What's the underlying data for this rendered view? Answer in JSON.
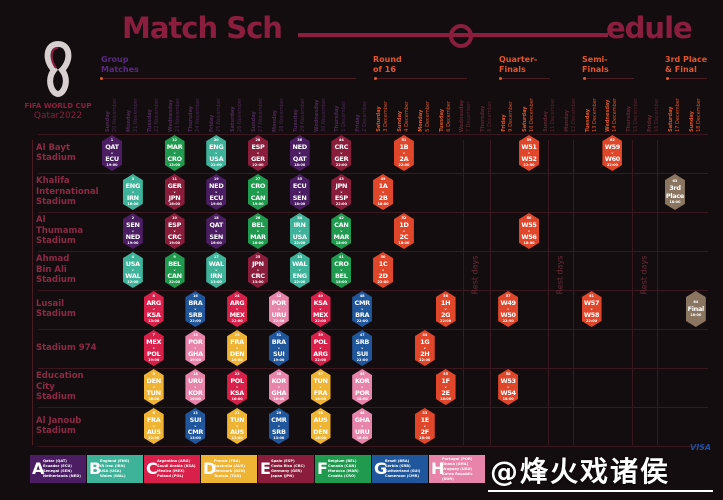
{
  "header": {
    "title_left": "Match Sch",
    "title_right": "edule",
    "logo_line1": "FIFA WORLD CUP",
    "logo_line2": "Qatar2022",
    "phases": {
      "group": "Group\nMatches",
      "r16": "Round\nof 16",
      "qf": "Quarter-\nFinals",
      "sf": "Semi-\nFinals",
      "final": "3rd Place\n& Final"
    }
  },
  "rest_label": "Rest days",
  "colors": {
    "title": "#8b1e3f",
    "knockout": "#e0462a",
    "final": "#8a7660",
    "ko_day": "#e0562a",
    "group_day": "#4a2a55",
    "rest_day": "#5a2530"
  },
  "days": [
    {
      "wd": "Sunday",
      "date": "20 November",
      "kind": "group"
    },
    {
      "wd": "Monday",
      "date": "21 November",
      "kind": "group"
    },
    {
      "wd": "Tuesday",
      "date": "22 November",
      "kind": "group"
    },
    {
      "wd": "Wednesday",
      "date": "23 November",
      "kind": "group"
    },
    {
      "wd": "Thursday",
      "date": "24 November",
      "kind": "group"
    },
    {
      "wd": "Friday",
      "date": "25 November",
      "kind": "group"
    },
    {
      "wd": "Saturday",
      "date": "26 November",
      "kind": "group"
    },
    {
      "wd": "Sunday",
      "date": "27 November",
      "kind": "group"
    },
    {
      "wd": "Monday",
      "date": "28 November",
      "kind": "group"
    },
    {
      "wd": "Tuesday",
      "date": "29 November",
      "kind": "group"
    },
    {
      "wd": "Wednesday",
      "date": "30 November",
      "kind": "group"
    },
    {
      "wd": "Thursday",
      "date": "1 December",
      "kind": "group"
    },
    {
      "wd": "Friday",
      "date": "2 December",
      "kind": "group"
    },
    {
      "wd": "Saturday",
      "date": "3 December",
      "kind": "ko"
    },
    {
      "wd": "Sunday",
      "date": "4 December",
      "kind": "ko"
    },
    {
      "wd": "Monday",
      "date": "5 December",
      "kind": "ko"
    },
    {
      "wd": "Tuesday",
      "date": "6 December",
      "kind": "ko"
    },
    {
      "wd": "Wednesday",
      "date": "7 December",
      "kind": "rest"
    },
    {
      "wd": "Thursday",
      "date": "8 December",
      "kind": "rest"
    },
    {
      "wd": "Friday",
      "date": "9 December",
      "kind": "ko"
    },
    {
      "wd": "Saturday",
      "date": "10 December",
      "kind": "ko"
    },
    {
      "wd": "Sunday",
      "date": "11 December",
      "kind": "rest"
    },
    {
      "wd": "Monday",
      "date": "12 December",
      "kind": "rest"
    },
    {
      "wd": "Tuesday",
      "date": "13 December",
      "kind": "ko"
    },
    {
      "wd": "Wednesday",
      "date": "14 December",
      "kind": "ko"
    },
    {
      "wd": "Thursday",
      "date": "15 December",
      "kind": "rest"
    },
    {
      "wd": "Friday",
      "date": "16 December",
      "kind": "rest"
    },
    {
      "wd": "Saturday",
      "date": "17 December",
      "kind": "ko"
    },
    {
      "wd": "Sunday",
      "date": "18 December",
      "kind": "ko"
    }
  ],
  "stadiums": [
    "Al Bayt\nStadium",
    "Khalifa\nInternational\nStadium",
    "Al\nThumama\nStadium",
    "Ahmad\nBin Ali\nStadium",
    "Lusail\nStadium",
    "Stadium 974",
    "Education\nCity\nStadium",
    "Al Janoub\nStadium"
  ],
  "groups": [
    {
      "letter": "A",
      "color": "#4b1d63",
      "teams": [
        "Qatar (QAT)",
        "Ecuador (ECU)",
        "Senegal (SEN)",
        "Netherlands (NED)"
      ]
    },
    {
      "letter": "B",
      "color": "#3fb39a",
      "teams": [
        "England (ENG)",
        "IR Iran (IRN)",
        "USA (USA)",
        "Wales (WAL)"
      ]
    },
    {
      "letter": "C",
      "color": "#d8204a",
      "teams": [
        "Argentina (ARG)",
        "Saudi Arabia (KSA)",
        "Mexico (MEX)",
        "Poland (POL)"
      ]
    },
    {
      "letter": "D",
      "color": "#efb434",
      "teams": [
        "France (FRA)",
        "Australia (AUS)",
        "Denmark (DEN)",
        "Tunisia (TUN)"
      ]
    },
    {
      "letter": "E",
      "color": "#8a1d3c",
      "teams": [
        "Spain (ESP)",
        "Costa Rica (CRC)",
        "Germany (GER)",
        "Japan (JPN)"
      ]
    },
    {
      "letter": "F",
      "color": "#1f9a4e",
      "teams": [
        "Belgium (BEL)",
        "Canada (CAN)",
        "Morocco (MAR)",
        "Croatia (CRO)"
      ]
    },
    {
      "letter": "G",
      "color": "#1f569c",
      "teams": [
        "Brazil (BRA)",
        "Serbia (SRB)",
        "Switzerland (SUI)",
        "Cameroon (CMR)"
      ]
    },
    {
      "letter": "H",
      "color": "#e883a9",
      "teams": [
        "Portugal (POR)",
        "Ghana (GHA)",
        "Uruguay (URU)",
        "Korea Republic (KOR)"
      ]
    }
  ],
  "matches": [
    {
      "n": 1,
      "h": "QAT",
      "a": "ECU",
      "t": "19:00",
      "s": 0,
      "d": 0
    },
    {
      "n": 3,
      "h": "ENG",
      "a": "IRN",
      "t": "16:00",
      "s": 1,
      "d": 1
    },
    {
      "n": 2,
      "h": "SEN",
      "a": "NED",
      "t": "19:00",
      "s": 2,
      "d": 1
    },
    {
      "n": 4,
      "h": "USA",
      "a": "WAL",
      "t": "22:00",
      "s": 3,
      "d": 1
    },
    {
      "n": 8,
      "h": "ARG",
      "a": "KSA",
      "t": "13:00",
      "s": 4,
      "d": 2
    },
    {
      "n": 5,
      "h": "DEN",
      "a": "TUN",
      "t": "16:00",
      "s": 6,
      "d": 2
    },
    {
      "n": 7,
      "h": "MEX",
      "a": "POL",
      "t": "19:00",
      "s": 5,
      "d": 2
    },
    {
      "n": 6,
      "h": "FRA",
      "a": "AUS",
      "t": "22:00",
      "s": 7,
      "d": 2
    },
    {
      "n": 12,
      "h": "MAR",
      "a": "CRO",
      "t": "13:00",
      "s": 0,
      "d": 3
    },
    {
      "n": 11,
      "h": "GER",
      "a": "JPN",
      "t": "16:00",
      "s": 1,
      "d": 3
    },
    {
      "n": 10,
      "h": "ESP",
      "a": "CRC",
      "t": "19:00",
      "s": 2,
      "d": 3
    },
    {
      "n": 9,
      "h": "BEL",
      "a": "CAN",
      "t": "22:00",
      "s": 3,
      "d": 3
    },
    {
      "n": 13,
      "h": "SUI",
      "a": "CMR",
      "t": "13:00",
      "s": 7,
      "d": 4
    },
    {
      "n": 14,
      "h": "URU",
      "a": "KOR",
      "t": "16:00",
      "s": 6,
      "d": 4
    },
    {
      "n": 15,
      "h": "POR",
      "a": "GHA",
      "t": "19:00",
      "s": 5,
      "d": 4
    },
    {
      "n": 16,
      "h": "BRA",
      "a": "SRB",
      "t": "22:00",
      "s": 4,
      "d": 4
    },
    {
      "n": 17,
      "h": "WAL",
      "a": "IRN",
      "t": "13:00",
      "s": 3,
      "d": 5
    },
    {
      "n": 18,
      "h": "QAT",
      "a": "SEN",
      "t": "16:00",
      "s": 2,
      "d": 5
    },
    {
      "n": 19,
      "h": "NED",
      "a": "ECU",
      "t": "19:00",
      "s": 1,
      "d": 5
    },
    {
      "n": 20,
      "h": "ENG",
      "a": "USA",
      "t": "22:00",
      "s": 0,
      "d": 5
    },
    {
      "n": 21,
      "h": "TUN",
      "a": "AUS",
      "t": "13:00",
      "s": 7,
      "d": 6
    },
    {
      "n": 22,
      "h": "POL",
      "a": "KSA",
      "t": "16:00",
      "s": 6,
      "d": 6
    },
    {
      "n": 23,
      "h": "FRA",
      "a": "DEN",
      "t": "19:00",
      "s": 5,
      "d": 6
    },
    {
      "n": 24,
      "h": "ARG",
      "a": "MEX",
      "t": "22:00",
      "s": 4,
      "d": 6
    },
    {
      "n": 25,
      "h": "JPN",
      "a": "CRC",
      "t": "13:00",
      "s": 3,
      "d": 7
    },
    {
      "n": 26,
      "h": "BEL",
      "a": "MAR",
      "t": "16:00",
      "s": 2,
      "d": 7
    },
    {
      "n": 27,
      "h": "CRO",
      "a": "CAN",
      "t": "19:00",
      "s": 1,
      "d": 7
    },
    {
      "n": 28,
      "h": "ESP",
      "a": "GER",
      "t": "22:00",
      "s": 0,
      "d": 7
    },
    {
      "n": 29,
      "h": "CMR",
      "a": "SRB",
      "t": "13:00",
      "s": 7,
      "d": 8
    },
    {
      "n": 30,
      "h": "KOR",
      "a": "GHA",
      "t": "16:00",
      "s": 6,
      "d": 8
    },
    {
      "n": 31,
      "h": "BRA",
      "a": "SUI",
      "t": "19:00",
      "s": 5,
      "d": 8
    },
    {
      "n": 32,
      "h": "POR",
      "a": "URU",
      "t": "22:00",
      "s": 4,
      "d": 8
    },
    {
      "n": 33,
      "h": "WAL",
      "a": "ENG",
      "t": "22:00",
      "s": 3,
      "d": 9
    },
    {
      "n": 34,
      "h": "IRN",
      "a": "USA",
      "t": "22:00",
      "s": 2,
      "d": 9
    },
    {
      "n": 35,
      "h": "ECU",
      "a": "SEN",
      "t": "18:00",
      "s": 1,
      "d": 9
    },
    {
      "n": 36,
      "h": "NED",
      "a": "QAT",
      "t": "18:00",
      "s": 0,
      "d": 9
    },
    {
      "n": 37,
      "h": "TUN",
      "a": "FRA",
      "t": "18:00",
      "s": 6,
      "d": 10
    },
    {
      "n": 38,
      "h": "AUS",
      "a": "DEN",
      "t": "18:00",
      "s": 7,
      "d": 10
    },
    {
      "n": 39,
      "h": "POL",
      "a": "ARG",
      "t": "22:00",
      "s": 5,
      "d": 10
    },
    {
      "n": 40,
      "h": "KSA",
      "a": "MEX",
      "t": "22:00",
      "s": 4,
      "d": 10
    },
    {
      "n": 41,
      "h": "CRO",
      "a": "BEL",
      "t": "18:00",
      "s": 3,
      "d": 11
    },
    {
      "n": 42,
      "h": "CAN",
      "a": "MAR",
      "t": "18:00",
      "s": 2,
      "d": 11
    },
    {
      "n": 43,
      "h": "JPN",
      "a": "ESP",
      "t": "22:00",
      "s": 1,
      "d": 11
    },
    {
      "n": 44,
      "h": "CRC",
      "a": "GER",
      "t": "22:00",
      "s": 0,
      "d": 11
    },
    {
      "n": 45,
      "h": "KOR",
      "a": "POR",
      "t": "18:00",
      "s": 6,
      "d": 12
    },
    {
      "n": 46,
      "h": "GHA",
      "a": "URU",
      "t": "18:00",
      "s": 7,
      "d": 12
    },
    {
      "n": 47,
      "h": "SRB",
      "a": "SUI",
      "t": "22:00",
      "s": 5,
      "d": 12
    },
    {
      "n": 48,
      "h": "CMR",
      "a": "BRA",
      "t": "22:00",
      "s": 4,
      "d": 12
    },
    {
      "n": 49,
      "h": "1A",
      "a": "2B",
      "t": "18:00",
      "s": 1,
      "d": 13,
      "stage": "ko"
    },
    {
      "n": 50,
      "h": "1C",
      "a": "2D",
      "t": "22:00",
      "s": 3,
      "d": 13,
      "stage": "ko"
    },
    {
      "n": 52,
      "h": "1D",
      "a": "2C",
      "t": "18:00",
      "s": 2,
      "d": 14,
      "stage": "ko"
    },
    {
      "n": 51,
      "h": "1B",
      "a": "2A",
      "t": "22:00",
      "s": 0,
      "d": 14,
      "stage": "ko"
    },
    {
      "n": 53,
      "h": "1E",
      "a": "2F",
      "t": "18:00",
      "s": 7,
      "d": 15,
      "stage": "ko"
    },
    {
      "n": 54,
      "h": "1G",
      "a": "2H",
      "t": "22:00",
      "s": 5,
      "d": 15,
      "stage": "ko"
    },
    {
      "n": 55,
      "h": "1F",
      "a": "2E",
      "t": "18:00",
      "s": 6,
      "d": 16,
      "stage": "ko"
    },
    {
      "n": 56,
      "h": "1H",
      "a": "2G",
      "t": "22:00",
      "s": 4,
      "d": 16,
      "stage": "ko"
    },
    {
      "n": 58,
      "h": "W53",
      "a": "W54",
      "t": "18:00",
      "s": 6,
      "d": 19,
      "stage": "ko"
    },
    {
      "n": 57,
      "h": "W49",
      "a": "W50",
      "t": "22:00",
      "s": 4,
      "d": 19,
      "stage": "ko"
    },
    {
      "n": 60,
      "h": "W55",
      "a": "W56",
      "t": "18:00",
      "s": 2,
      "d": 20,
      "stage": "ko"
    },
    {
      "n": 59,
      "h": "W51",
      "a": "W52",
      "t": "22:00",
      "s": 0,
      "d": 20,
      "stage": "ko"
    },
    {
      "n": 61,
      "h": "W57",
      "a": "W58",
      "t": "22:00",
      "s": 4,
      "d": 23,
      "stage": "ko"
    },
    {
      "n": 62,
      "h": "W59",
      "a": "W60",
      "t": "22:00",
      "s": 0,
      "d": 24,
      "stage": "ko"
    },
    {
      "n": 63,
      "label": "3rd\nPlace",
      "t": "18:00",
      "s": 1,
      "d": 27,
      "stage": "final"
    },
    {
      "n": 64,
      "label": "Final",
      "t": "18:00",
      "s": 4,
      "d": 28,
      "stage": "final"
    }
  ],
  "vs": "v",
  "sponsor": "VISA",
  "watermark": "@烽火戏诸侯"
}
